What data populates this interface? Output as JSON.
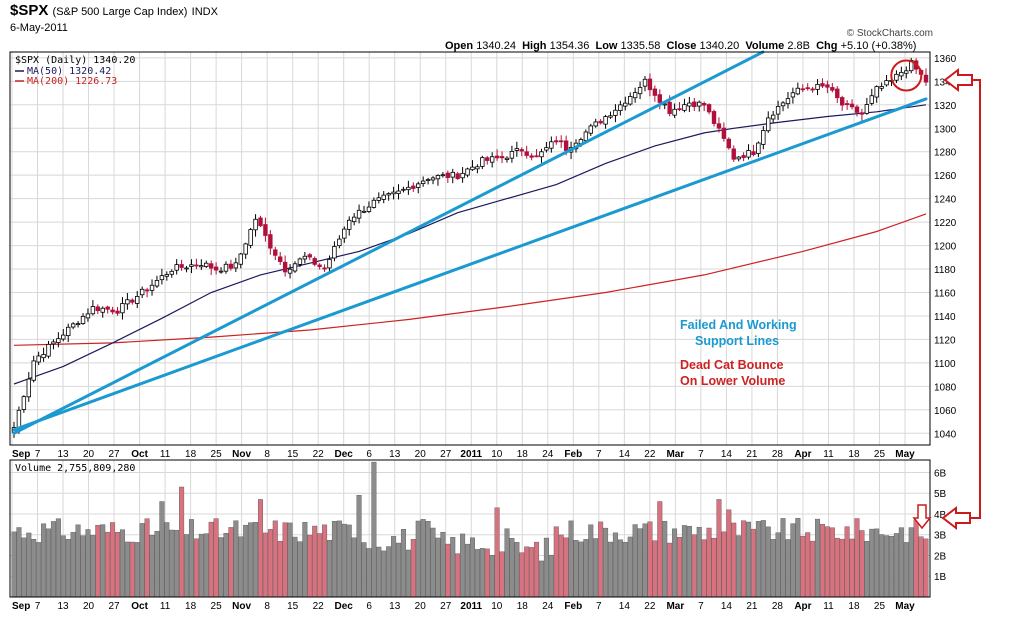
{
  "header": {
    "symbol": "$SPX",
    "name": "(S&P 500 Large Cap Index)",
    "exchange": "INDX",
    "date": "6-May-2011",
    "brand": "© StockCharts.com",
    "open_label": "Open",
    "open": "1340.24",
    "high_label": "High",
    "high": "1354.36",
    "low_label": "Low",
    "low": "1335.58",
    "close_label": "Close",
    "close": "1340.20",
    "volume_label": "Volume",
    "volume": "2.8B",
    "chg_label": "Chg",
    "chg": "+5.10 (+0.38%)"
  },
  "legend": {
    "price": "$SPX (Daily) 1340.20",
    "ma50": "MA(50) 1320.42",
    "ma200": "MA(200) 1226.73",
    "volume": "Volume 2,755,809,280"
  },
  "annotations": {
    "support_line1": "Failed And Working",
    "support_line2": "Support Lines",
    "bounce_line1": "Dead Cat Bounce",
    "bounce_line2": "On Lower Volume"
  },
  "colors": {
    "up": "#000000",
    "down": "#b0103c",
    "ma50": "#1a1a60",
    "ma200": "#cc2222",
    "support": "#1a9ad0",
    "annot_blue": "#1a9ad0",
    "annot_red": "#cc2222",
    "vol_up": "#8c8c8c",
    "vol_down": "#d9727f",
    "marker": "#cc1a1a",
    "grid": "#d8d8d8"
  },
  "chart_data": [
    {
      "type": "candlestick",
      "ylim": [
        1030,
        1365
      ],
      "y_ticks": [
        1040,
        1060,
        1080,
        1100,
        1120,
        1140,
        1160,
        1180,
        1200,
        1220,
        1240,
        1260,
        1280,
        1300,
        1320,
        1340,
        1360
      ],
      "x_labels": [
        {
          "label": "Sep",
          "bold": true,
          "month": "Sep"
        },
        {
          "label": "7"
        },
        {
          "label": "13"
        },
        {
          "label": "20"
        },
        {
          "label": "27"
        },
        {
          "label": "Oct",
          "bold": true
        },
        {
          "label": "11"
        },
        {
          "label": "18"
        },
        {
          "label": "25"
        },
        {
          "label": "Nov",
          "bold": true
        },
        {
          "label": "8"
        },
        {
          "label": "15"
        },
        {
          "label": "22"
        },
        {
          "label": "Dec",
          "bold": true
        },
        {
          "label": "6"
        },
        {
          "label": "13"
        },
        {
          "label": "20"
        },
        {
          "label": "27"
        },
        {
          "label": "2011",
          "bold": true
        },
        {
          "label": "10"
        },
        {
          "label": "18"
        },
        {
          "label": "24"
        },
        {
          "label": "Feb",
          "bold": true
        },
        {
          "label": "7"
        },
        {
          "label": "14"
        },
        {
          "label": "22"
        },
        {
          "label": "Mar",
          "bold": true
        },
        {
          "label": "7"
        },
        {
          "label": "14"
        },
        {
          "label": "21"
        },
        {
          "label": "28"
        },
        {
          "label": "Apr",
          "bold": true
        },
        {
          "label": "11"
        },
        {
          "label": "18"
        },
        {
          "label": "25"
        },
        {
          "label": "May",
          "bold": true
        }
      ],
      "close_points": [
        [
          0,
          1045
        ],
        [
          4,
          1102
        ],
        [
          10,
          1125
        ],
        [
          16,
          1147
        ],
        [
          21,
          1145
        ],
        [
          26,
          1160
        ],
        [
          32,
          1180
        ],
        [
          38,
          1185
        ],
        [
          41,
          1180
        ],
        [
          45,
          1183
        ],
        [
          49,
          1223
        ],
        [
          52,
          1200
        ],
        [
          55,
          1180
        ],
        [
          59,
          1190
        ],
        [
          63,
          1180
        ],
        [
          68,
          1223
        ],
        [
          73,
          1237
        ],
        [
          78,
          1245
        ],
        [
          84,
          1258
        ],
        [
          90,
          1260
        ],
        [
          95,
          1272
        ],
        [
          99,
          1275
        ],
        [
          103,
          1282
        ],
        [
          106,
          1275
        ],
        [
          110,
          1290
        ],
        [
          112,
          1283
        ],
        [
          117,
          1300
        ],
        [
          123,
          1320
        ],
        [
          128,
          1340
        ],
        [
          130,
          1330
        ],
        [
          133,
          1315
        ],
        [
          137,
          1322
        ],
        [
          140,
          1320
        ],
        [
          144,
          1290
        ],
        [
          146,
          1275
        ],
        [
          150,
          1280
        ],
        [
          153,
          1310
        ],
        [
          158,
          1330
        ],
        [
          161,
          1335
        ],
        [
          165,
          1335
        ],
        [
          168,
          1320
        ],
        [
          172,
          1312
        ],
        [
          175,
          1333
        ],
        [
          178,
          1340
        ],
        [
          180,
          1348
        ],
        [
          182,
          1355
        ],
        [
          184,
          1345
        ],
        [
          185,
          1340
        ]
      ],
      "ma50": [
        [
          0,
          1082
        ],
        [
          10,
          1097
        ],
        [
          20,
          1117
        ],
        [
          30,
          1138
        ],
        [
          40,
          1160
        ],
        [
          50,
          1175
        ],
        [
          60,
          1185
        ],
        [
          70,
          1195
        ],
        [
          80,
          1210
        ],
        [
          90,
          1228
        ],
        [
          100,
          1240
        ],
        [
          110,
          1252
        ],
        [
          120,
          1270
        ],
        [
          130,
          1285
        ],
        [
          140,
          1296
        ],
        [
          146,
          1300
        ],
        [
          155,
          1305
        ],
        [
          165,
          1310
        ],
        [
          175,
          1314
        ],
        [
          185,
          1320
        ]
      ],
      "ma200": [
        [
          0,
          1115
        ],
        [
          20,
          1117
        ],
        [
          40,
          1122
        ],
        [
          60,
          1128
        ],
        [
          80,
          1137
        ],
        [
          100,
          1148
        ],
        [
          120,
          1160
        ],
        [
          140,
          1175
        ],
        [
          160,
          1195
        ],
        [
          175,
          1212
        ],
        [
          185,
          1227
        ]
      ],
      "support_lines": [
        {
          "from": [
            0,
            1040
          ],
          "to": [
            158,
            1378
          ]
        },
        {
          "from": [
            0,
            1043
          ],
          "to": [
            185,
            1325
          ]
        }
      ],
      "marker_circle": {
        "x": 181,
        "y": 1345
      },
      "markers": [
        "red-circle-on-last-candles",
        "red-arrow-left-price",
        "red-arrow-left-volume",
        "red-connector-line"
      ]
    },
    {
      "type": "bar",
      "ylim": [
        0,
        6.6
      ],
      "y_ticks": [
        {
          "v": 1,
          "label": "1B"
        },
        {
          "v": 2,
          "label": "2B"
        },
        {
          "v": 3,
          "label": "3B"
        },
        {
          "v": 4,
          "label": "4B"
        },
        {
          "v": 5,
          "label": "5B"
        },
        {
          "v": 6,
          "label": "6B"
        }
      ],
      "unit": "billions of shares",
      "last_value": 2.8
    }
  ]
}
